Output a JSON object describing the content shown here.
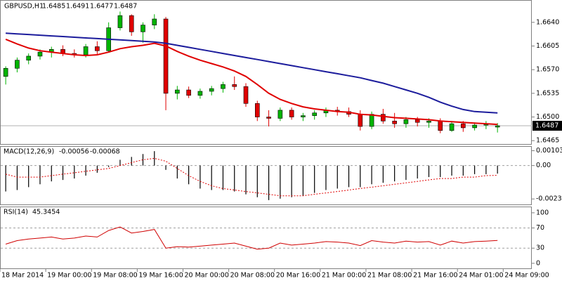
{
  "chart_data": [
    {
      "type": "candlestick",
      "title": "GBPUSD,H1",
      "open": [
        1.656,
        1.6572,
        1.6584,
        1.659,
        1.6596,
        1.66,
        1.6594,
        1.6592,
        1.6604,
        1.6598,
        1.6632,
        1.665,
        1.6626,
        1.6636,
        1.6645,
        1.6535,
        1.654,
        1.6532,
        1.6538,
        1.6542,
        1.6548,
        1.6545,
        1.652,
        1.65,
        1.6498,
        1.651,
        1.65,
        1.6502,
        1.6506,
        1.651,
        1.6508,
        1.6504,
        1.6486,
        1.6504,
        1.6494,
        1.649,
        1.6496,
        1.6492,
        1.6494,
        1.648,
        1.649,
        1.6484,
        1.6488,
        1.6485
      ],
      "high": [
        1.6575,
        1.6588,
        1.6594,
        1.66,
        1.6604,
        1.6606,
        1.66,
        1.6608,
        1.6612,
        1.664,
        1.6656,
        1.6652,
        1.664,
        1.6652,
        1.6648,
        1.6546,
        1.6545,
        1.6542,
        1.6546,
        1.6552,
        1.656,
        1.655,
        1.6524,
        1.651,
        1.6514,
        1.6514,
        1.6506,
        1.651,
        1.6514,
        1.6515,
        1.6514,
        1.651,
        1.6508,
        1.6512,
        1.6506,
        1.65,
        1.65,
        1.6498,
        1.6498,
        1.6494,
        1.6494,
        1.6492,
        1.6494,
        1.6491
      ],
      "low": [
        1.6548,
        1.6566,
        1.6578,
        1.6585,
        1.6588,
        1.659,
        1.6588,
        1.6588,
        1.6592,
        1.6596,
        1.6628,
        1.662,
        1.661,
        1.663,
        1.651,
        1.6526,
        1.6528,
        1.6527,
        1.6532,
        1.6536,
        1.654,
        1.6515,
        1.6494,
        1.6486,
        1.6494,
        1.6496,
        1.6494,
        1.6496,
        1.65,
        1.6502,
        1.65,
        1.648,
        1.6482,
        1.649,
        1.6484,
        1.6484,
        1.6486,
        1.6484,
        1.6476,
        1.6478,
        1.6478,
        1.648,
        1.6482,
        1.6477
      ],
      "close": [
        1.6572,
        1.6584,
        1.659,
        1.6596,
        1.66,
        1.6594,
        1.6592,
        1.6604,
        1.6598,
        1.6632,
        1.665,
        1.6626,
        1.6636,
        1.6645,
        1.6535,
        1.654,
        1.6532,
        1.6538,
        1.6542,
        1.6548,
        1.6545,
        1.652,
        1.65,
        1.6498,
        1.651,
        1.65,
        1.6502,
        1.6506,
        1.651,
        1.6508,
        1.6504,
        1.6486,
        1.6504,
        1.6494,
        1.649,
        1.6496,
        1.6492,
        1.6494,
        1.648,
        1.649,
        1.6484,
        1.6488,
        1.649,
        1.6487
      ],
      "up_color": "#00b400",
      "down_color": "#e00000",
      "lines": [
        {
          "color": "#1c1c9c",
          "values": [
            1.6624,
            1.6623,
            1.6622,
            1.6621,
            1.662,
            1.6619,
            1.6618,
            1.6617,
            1.6616,
            1.6615,
            1.6614,
            1.6613,
            1.6612,
            1.6611,
            1.6609,
            1.6606,
            1.6603,
            1.66,
            1.6597,
            1.6594,
            1.6591,
            1.6588,
            1.6585,
            1.6582,
            1.6579,
            1.6576,
            1.6573,
            1.657,
            1.6567,
            1.6564,
            1.6561,
            1.6558,
            1.6554,
            1.655,
            1.6545,
            1.654,
            1.6535,
            1.6529,
            1.6522,
            1.6516,
            1.6511,
            1.6508,
            1.6507,
            1.6506
          ]
        },
        {
          "color": "#e00000",
          "values": [
            1.6615,
            1.6608,
            1.6602,
            1.6598,
            1.6596,
            1.6594,
            1.6592,
            1.6591,
            1.6592,
            1.6596,
            1.6601,
            1.6604,
            1.6606,
            1.6609,
            1.6605,
            1.6597,
            1.659,
            1.6584,
            1.6579,
            1.6574,
            1.6568,
            1.656,
            1.6548,
            1.6535,
            1.6526,
            1.652,
            1.6515,
            1.6512,
            1.651,
            1.6508,
            1.6507,
            1.6504,
            1.6503,
            1.6501,
            1.6499,
            1.6498,
            1.6497,
            1.6496,
            1.6494,
            1.6493,
            1.6492,
            1.6491,
            1.649,
            1.6489
          ]
        }
      ],
      "ylim": [
        1.646,
        1.6671
      ],
      "yticks": [
        {
          "value": 1.664,
          "label": "1.6640"
        },
        1.6605,
        {
          "value": 1.657,
          "label": "1.6570"
        },
        1.6535,
        {
          "value": 1.65,
          "label": "1.6500"
        },
        1.6465
      ]
    },
    {
      "type": "macd",
      "title": "MACD(12,26,9)",
      "histogram": [
        -0.0018,
        -0.0017,
        -0.0015,
        -0.0013,
        -0.0011,
        -0.001,
        -0.0009,
        -0.0007,
        -0.0005,
        -0.0001,
        0.0004,
        0.0006,
        0.0008,
        0.001,
        -0.0003,
        -0.0009,
        -0.0013,
        -0.0016,
        -0.0017,
        -0.0017,
        -0.0018,
        -0.002,
        -0.0022,
        -0.0024,
        -0.0023,
        -0.0022,
        -0.0021,
        -0.0019,
        -0.0017,
        -0.0016,
        -0.0015,
        -0.0015,
        -0.0013,
        -0.0012,
        -0.0011,
        -0.001,
        -0.0009,
        -0.0008,
        -0.0008,
        -0.0007,
        -0.0007,
        -0.0006,
        -0.0006,
        -0.00056
      ],
      "signal": [
        -0.0006,
        -0.0008,
        -0.0008,
        -0.0008,
        -0.0007,
        -0.0006,
        -0.0005,
        -0.0004,
        -0.0003,
        -0.0002,
        0.0,
        0.0002,
        0.0004,
        0.0005,
        0.0003,
        -0.0002,
        -0.0007,
        -0.0011,
        -0.0014,
        -0.0016,
        -0.0017,
        -0.0018,
        -0.0019,
        -0.002,
        -0.0021,
        -0.0021,
        -0.0021,
        -0.002,
        -0.0019,
        -0.0018,
        -0.0017,
        -0.0016,
        -0.0015,
        -0.0014,
        -0.0013,
        -0.0012,
        -0.0011,
        -0.001,
        -0.0009,
        -0.0009,
        -0.0008,
        -0.0008,
        -0.0007,
        -0.00068
      ],
      "histogram_color": "#000000",
      "signal_color": "#e00000",
      "ylim": [
        -0.0027,
        0.0013
      ],
      "yticks": [
        0.00103,
        {
          "value": 0,
          "label": "0.00"
        },
        -0.00232
      ]
    },
    {
      "type": "line",
      "title": "RSI(14)",
      "values": [
        38,
        45,
        48,
        50,
        52,
        48,
        50,
        54,
        52,
        65,
        72,
        60,
        63,
        67,
        30,
        33,
        32,
        34,
        36,
        38,
        40,
        34,
        28,
        30,
        40,
        36,
        38,
        40,
        43,
        42,
        40,
        35,
        45,
        42,
        40,
        44,
        42,
        43,
        36,
        44,
        40,
        43,
        44,
        45.3454
      ],
      "color": "#d00000",
      "ylim": [
        -10,
        111
      ],
      "yticks": [
        100,
        70,
        30,
        0
      ],
      "xlim": [
        0,
        46.5
      ],
      "xticks": [
        {
          "value": 0,
          "label": "18 Mar 2014"
        },
        {
          "value": 4,
          "label": "19 Mar 00:00"
        },
        {
          "value": 8,
          "label": "19 Mar 08:00"
        },
        {
          "value": 12,
          "label": "19 Mar 16:00"
        },
        {
          "value": 16,
          "label": "20 Mar 00:00"
        },
        {
          "value": 20,
          "label": "20 Mar 08:00"
        },
        {
          "value": 24,
          "label": "20 Mar 16:00"
        },
        {
          "value": 28,
          "label": "21 Mar 00:00"
        },
        {
          "value": 32,
          "label": "21 Mar 08:00"
        },
        {
          "value": 36,
          "label": "21 Mar 16:00"
        },
        {
          "value": 40,
          "label": "24 Mar 01:00"
        },
        {
          "value": 44,
          "label": "24 Mar 09:00"
        }
      ]
    }
  ]
}
